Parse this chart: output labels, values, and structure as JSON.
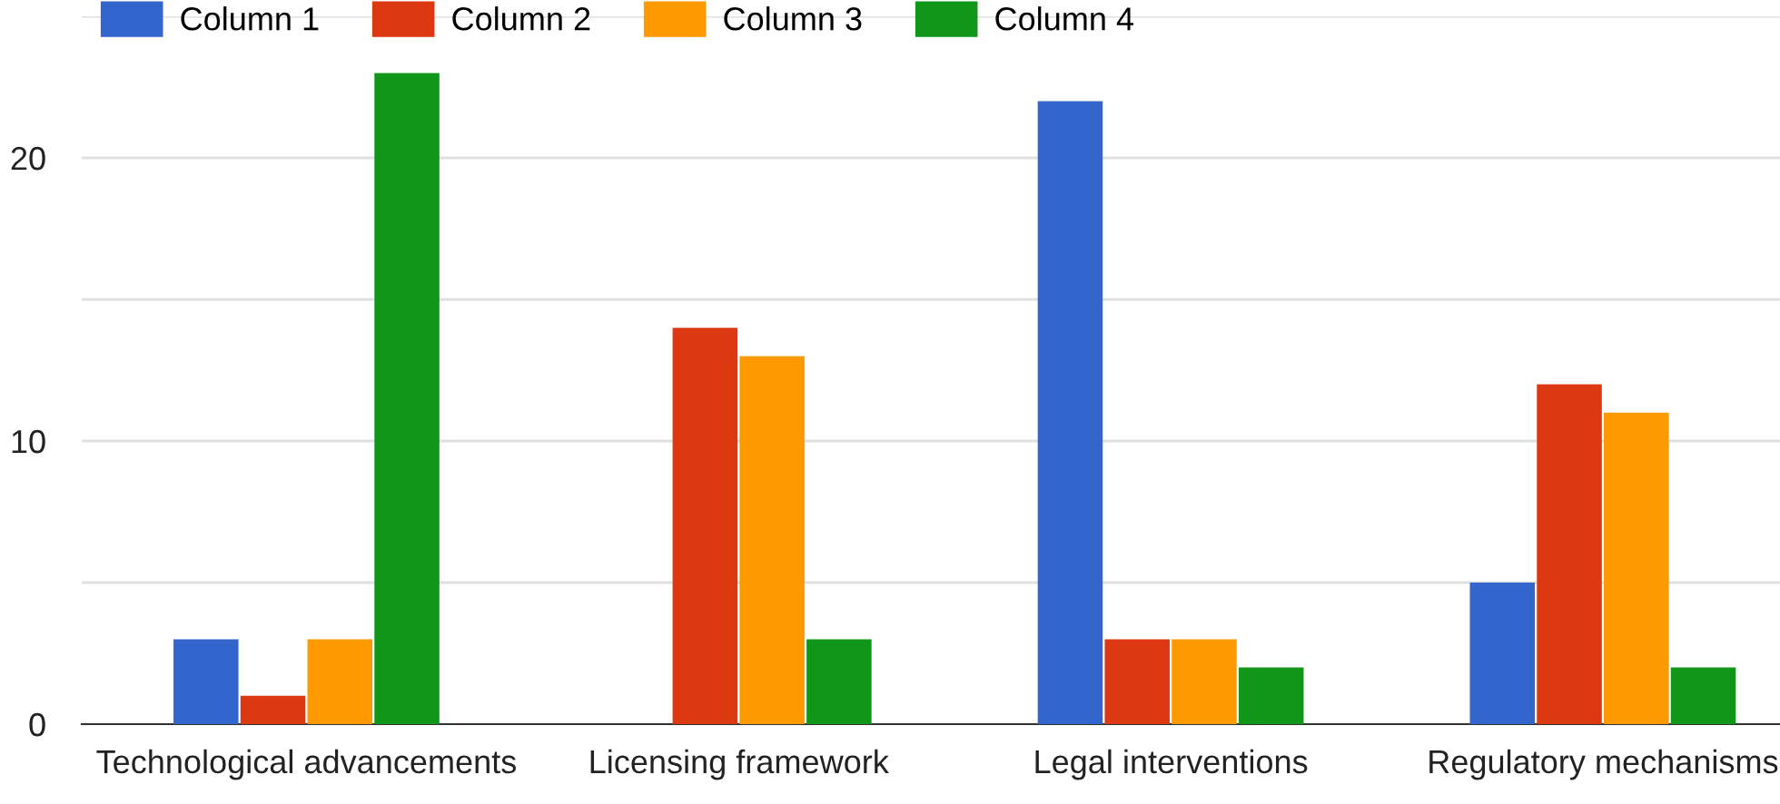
{
  "chart_data": {
    "type": "bar",
    "categories": [
      "Technological advancements",
      "Licensing framework",
      "Legal interventions",
      "Regulatory mechanisms"
    ],
    "series": [
      {
        "name": "Column 1",
        "color": "#3366cc",
        "values": [
          3,
          0,
          22,
          5
        ]
      },
      {
        "name": "Column 2",
        "color": "#dc3912",
        "values": [
          1,
          14,
          3,
          12
        ]
      },
      {
        "name": "Column 3",
        "color": "#ff9900",
        "values": [
          3,
          13,
          3,
          11
        ]
      },
      {
        "name": "Column 4",
        "color": "#109618",
        "values": [
          23,
          3,
          2,
          2
        ]
      }
    ],
    "ylim": [
      0,
      25
    ],
    "yticks": [
      0,
      {
        "value": 5,
        "label": null
      },
      10,
      {
        "value": 15,
        "label": null
      },
      20,
      {
        "value": 25,
        "label": null
      }
    ],
    "grid": "y",
    "legend": "top left"
  }
}
